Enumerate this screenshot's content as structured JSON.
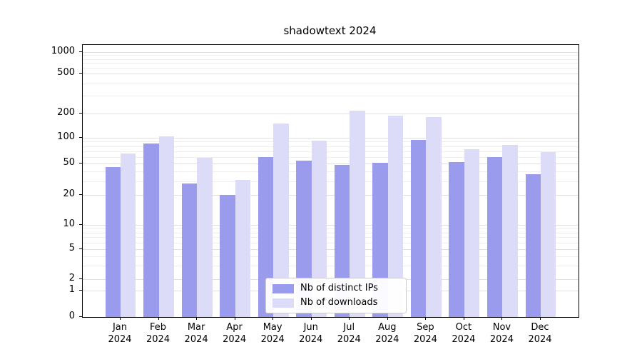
{
  "chart_data": {
    "type": "bar",
    "title": "shadowtext 2024",
    "categories": [
      "Jan 2024",
      "Feb 2024",
      "Mar 2024",
      "Apr 2024",
      "May 2024",
      "Jun 2024",
      "Jul 2024",
      "Aug 2024",
      "Sep 2024",
      "Oct 2024",
      "Nov 2024",
      "Dec 2024"
    ],
    "series": [
      {
        "name": "Nb of distinct IPs",
        "color": "#9b9bee",
        "values": [
          45,
          85,
          28,
          20,
          60,
          54,
          48,
          51,
          95,
          52,
          60,
          37
        ]
      },
      {
        "name": "Nb of downloads",
        "color": "#dcdcf8",
        "values": [
          65,
          103,
          58,
          31,
          150,
          93,
          215,
          190,
          180,
          73,
          82,
          68
        ]
      }
    ],
    "yticks": [
      0,
      1,
      2,
      5,
      10,
      20,
      50,
      100,
      200,
      500,
      1000
    ],
    "yscale": "symlog",
    "ylim": [
      0,
      1300
    ],
    "xlabel": "",
    "ylabel": "",
    "grid": true,
    "legend_position": "lower-center-inside",
    "colors": {
      "grid_major": "#e0e0e0",
      "grid_minor": "#eeeeee",
      "axis": "#000000",
      "background": "#ffffff"
    }
  }
}
